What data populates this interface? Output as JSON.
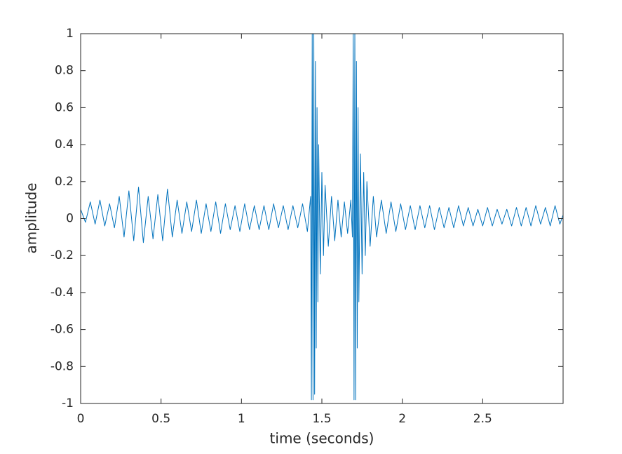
{
  "chart_data": {
    "type": "line",
    "xlabel": "time (seconds)",
    "ylabel": "amplitude",
    "color": "#0072bd",
    "xlim": [
      0,
      3.0
    ],
    "ylim": [
      -1,
      1
    ],
    "xticks": [
      0,
      0.5,
      1,
      1.5,
      2,
      2.5
    ],
    "yticks": [
      -1,
      -0.8,
      -0.6,
      -0.4,
      -0.2,
      0,
      0.2,
      0.4,
      0.6,
      0.8,
      1
    ],
    "box": true,
    "x": [
      0,
      0.03,
      0.06,
      0.09,
      0.12,
      0.15,
      0.18,
      0.21,
      0.24,
      0.27,
      0.3,
      0.33,
      0.36,
      0.39,
      0.42,
      0.45,
      0.48,
      0.51,
      0.54,
      0.57,
      0.6,
      0.63,
      0.66,
      0.69,
      0.72,
      0.75,
      0.78,
      0.81,
      0.84,
      0.87,
      0.9,
      0.93,
      0.96,
      0.99,
      1.02,
      1.05,
      1.08,
      1.11,
      1.14,
      1.17,
      1.2,
      1.23,
      1.26,
      1.29,
      1.32,
      1.35,
      1.38,
      1.41,
      1.43,
      1.435,
      1.44,
      1.445,
      1.45,
      1.455,
      1.46,
      1.465,
      1.47,
      1.475,
      1.48,
      1.49,
      1.5,
      1.51,
      1.52,
      1.54,
      1.56,
      1.58,
      1.6,
      1.62,
      1.64,
      1.66,
      1.68,
      1.69,
      1.695,
      1.7,
      1.705,
      1.71,
      1.715,
      1.72,
      1.725,
      1.73,
      1.74,
      1.75,
      1.76,
      1.77,
      1.78,
      1.8,
      1.82,
      1.84,
      1.87,
      1.9,
      1.93,
      1.96,
      1.99,
      2.02,
      2.05,
      2.08,
      2.11,
      2.14,
      2.17,
      2.2,
      2.23,
      2.26,
      2.29,
      2.32,
      2.35,
      2.38,
      2.41,
      2.44,
      2.47,
      2.5,
      2.53,
      2.56,
      2.59,
      2.62,
      2.65,
      2.68,
      2.71,
      2.74,
      2.77,
      2.8,
      2.83,
      2.86,
      2.89,
      2.92,
      2.95,
      2.98,
      3.0
    ],
    "values": [
      0.05,
      -0.02,
      0.09,
      -0.03,
      0.1,
      -0.04,
      0.08,
      -0.05,
      0.12,
      -0.1,
      0.15,
      -0.12,
      0.17,
      -0.13,
      0.12,
      -0.11,
      0.13,
      -0.12,
      0.16,
      -0.1,
      0.1,
      -0.08,
      0.09,
      -0.07,
      0.1,
      -0.08,
      0.08,
      -0.07,
      0.09,
      -0.08,
      0.08,
      -0.06,
      0.07,
      -0.07,
      0.08,
      -0.06,
      0.07,
      -0.06,
      0.07,
      -0.06,
      0.08,
      -0.05,
      0.07,
      -0.06,
      0.07,
      -0.05,
      0.08,
      -0.07,
      0.12,
      -0.98,
      1,
      -0.98,
      1,
      -0.95,
      0.85,
      -0.7,
      0.6,
      -0.45,
      0.4,
      -0.3,
      0.25,
      -0.2,
      0.18,
      -0.15,
      0.12,
      -0.12,
      0.1,
      -0.1,
      0.09,
      -0.08,
      0.1,
      -0.1,
      1,
      -0.98,
      1,
      -0.98,
      0.85,
      -0.7,
      0.6,
      -0.45,
      0.35,
      -0.3,
      0.25,
      -0.2,
      0.2,
      -0.15,
      0.12,
      -0.1,
      0.1,
      -0.08,
      0.09,
      -0.07,
      0.08,
      -0.06,
      0.07,
      -0.06,
      0.07,
      -0.05,
      0.07,
      -0.06,
      0.06,
      -0.05,
      0.06,
      -0.05,
      0.07,
      -0.04,
      0.06,
      -0.04,
      0.05,
      -0.04,
      0.06,
      -0.04,
      0.05,
      -0.03,
      0.05,
      -0.04,
      0.06,
      -0.04,
      0.06,
      -0.04,
      0.07,
      -0.03,
      0.06,
      -0.04,
      0.07,
      -0.03,
      0.02
    ]
  }
}
